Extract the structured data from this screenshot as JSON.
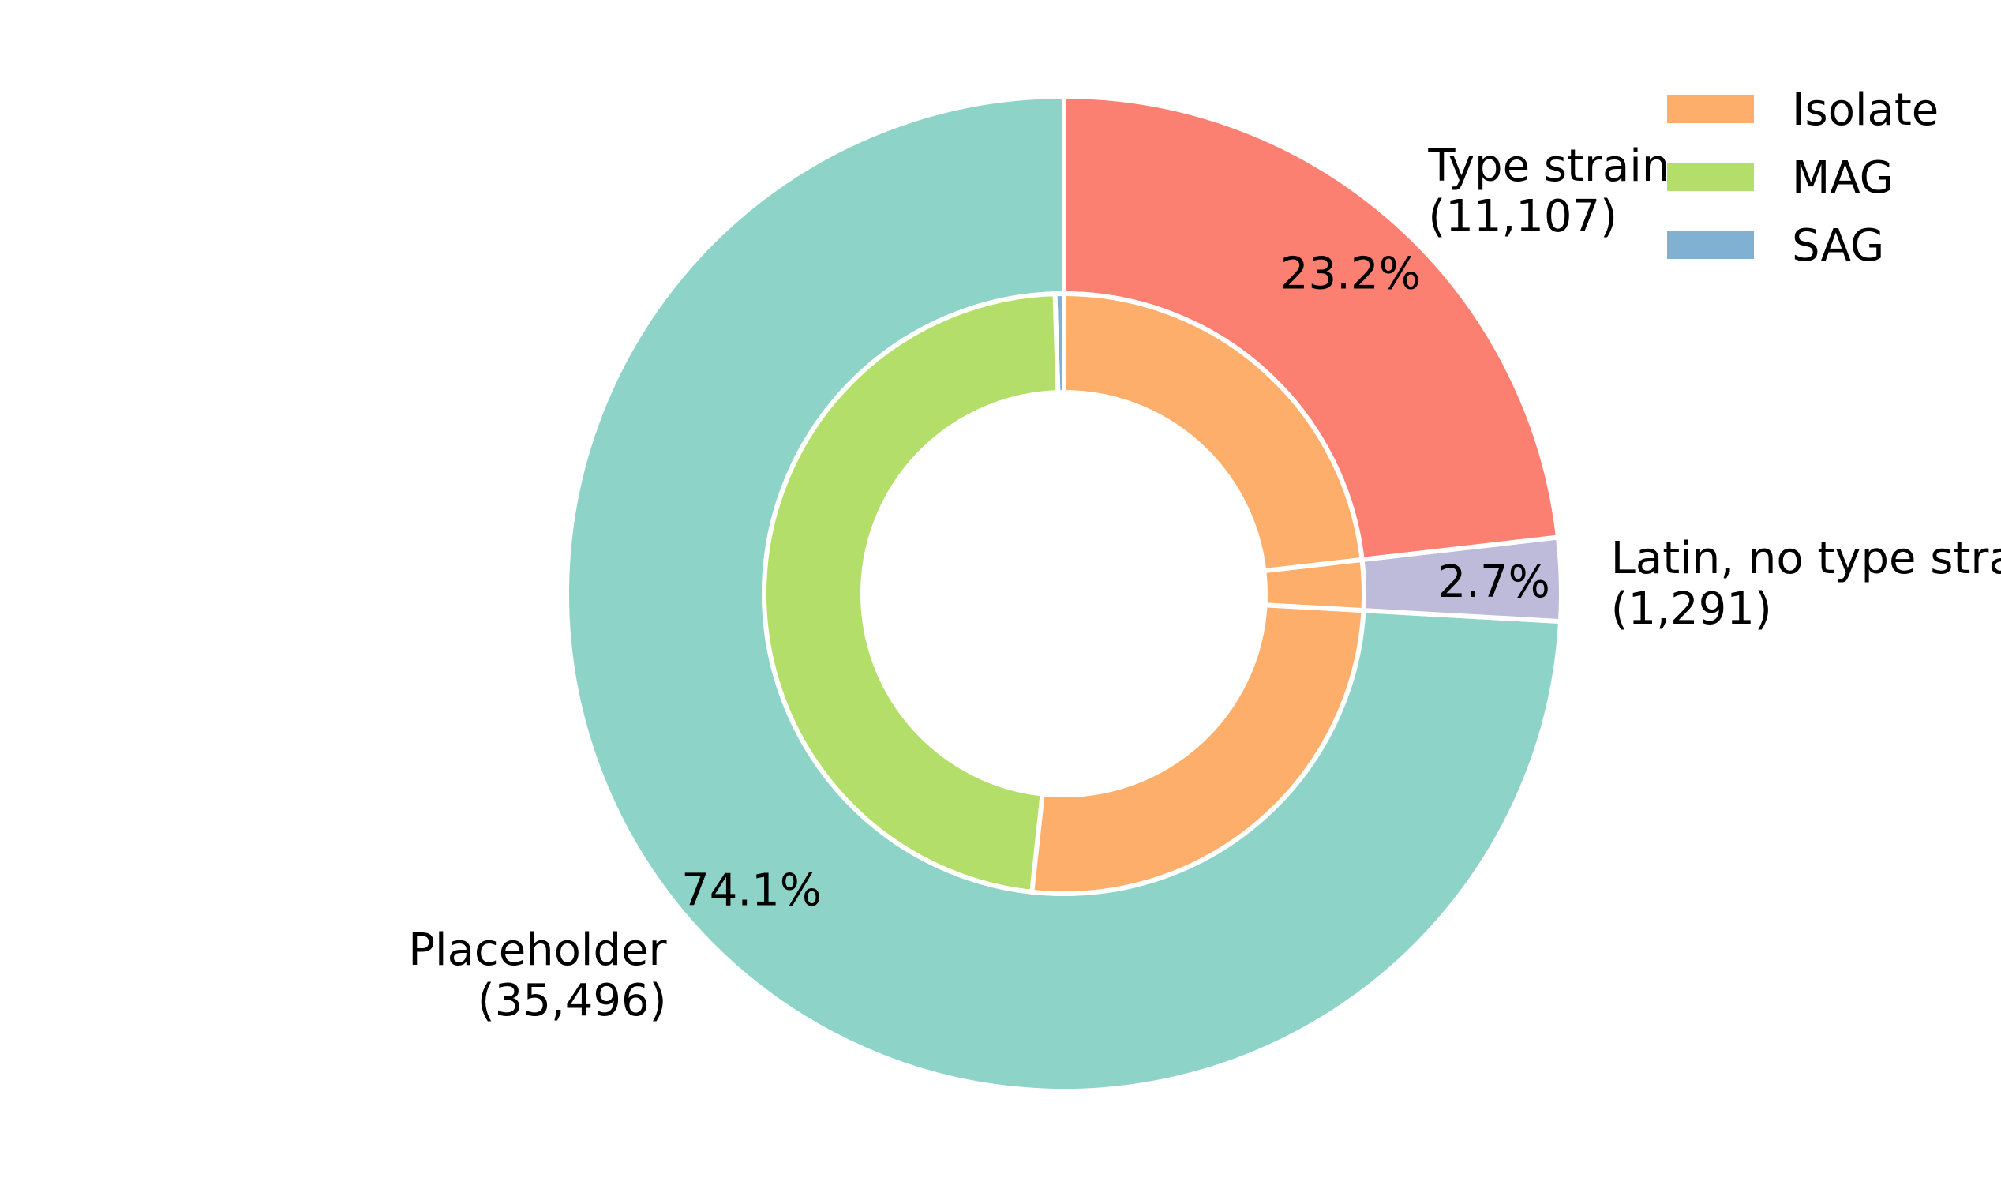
{
  "chart_data": {
    "type": "pie",
    "variant": "nested-donut",
    "legend_placement": "top-right",
    "outer": {
      "slices": [
        {
          "name": "Placeholder",
          "count_label": "(35,496)",
          "value": 35496,
          "pct_label": "74.1%",
          "color": "#8dd3c7"
        },
        {
          "name": "Latin, no type strain",
          "count_label": "(1,291)",
          "value": 1291,
          "pct_label": "2.7%",
          "color": "#bebada"
        },
        {
          "name": "Type strain",
          "count_label": "(11,107)",
          "value": 11107,
          "pct_label": "23.2%",
          "color": "#fb8072"
        }
      ]
    },
    "inner": {
      "slices": [
        {
          "group": "Placeholder",
          "category": "SAG",
          "value": 230
        },
        {
          "group": "Placeholder",
          "category": "MAG",
          "value": 22900
        },
        {
          "group": "Placeholder",
          "category": "Isolate",
          "value": 12366
        },
        {
          "group": "Latin, no type strain",
          "category": "Isolate",
          "value": 1291
        },
        {
          "group": "Type strain",
          "category": "Isolate",
          "value": 11107
        }
      ]
    },
    "legend": [
      {
        "label": "Isolate",
        "color": "#fdae6b"
      },
      {
        "label": "MAG",
        "color": "#b3de69"
      },
      {
        "label": "SAG",
        "color": "#80b1d3"
      }
    ]
  }
}
